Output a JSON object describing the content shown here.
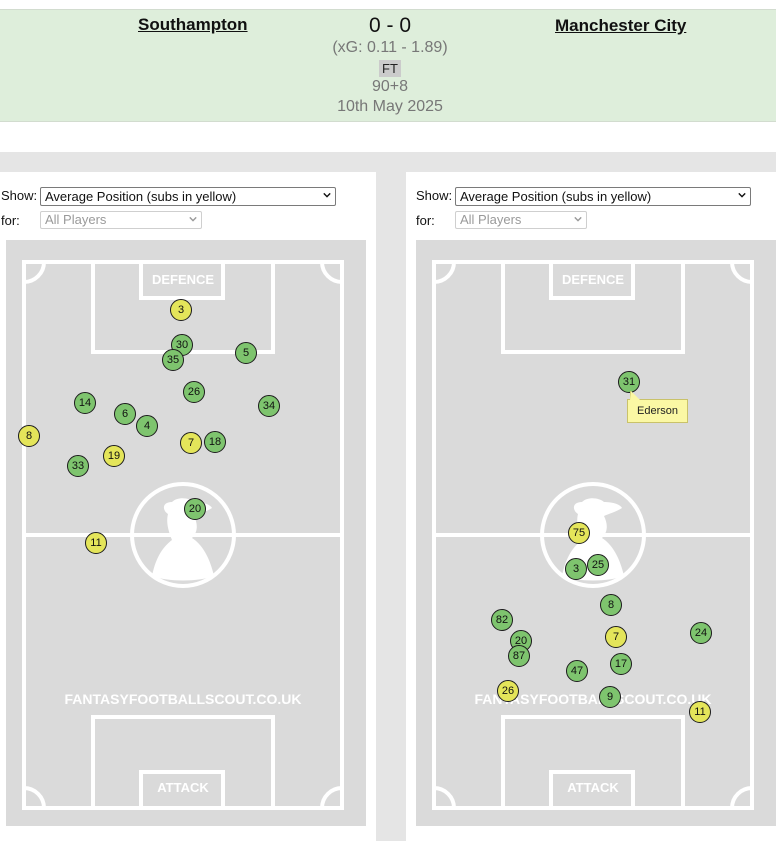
{
  "match": {
    "home_team": "Southampton",
    "away_team": "Manchester City",
    "score": "0 - 0",
    "xg": "(xG:  0.11 - 1.89)",
    "status": "FT",
    "minutes": "90+8",
    "date": "10th May 2025"
  },
  "controls": {
    "show_label": "Show:",
    "show_value": "Average Position (subs in yellow)",
    "for_label": "for:",
    "for_value": "All Players"
  },
  "pitch_text": {
    "defence": "DEFENCE",
    "attack": "ATTACK",
    "watermark": "FANTASYFOOTBALLSCOUT.CO.UK"
  },
  "colors": {
    "starter": "#7ec46e",
    "substitute": "#e4e55a",
    "header_bg": "#deeedb",
    "pitch_bg": "#dadada"
  },
  "home_players": [
    {
      "number": "3",
      "sub": true
    },
    {
      "number": "30",
      "sub": false
    },
    {
      "number": "35",
      "sub": false
    },
    {
      "number": "5",
      "sub": false
    },
    {
      "number": "26",
      "sub": false
    },
    {
      "number": "34",
      "sub": false
    },
    {
      "number": "14",
      "sub": false
    },
    {
      "number": "6",
      "sub": false
    },
    {
      "number": "4",
      "sub": false
    },
    {
      "number": "8",
      "sub": true
    },
    {
      "number": "7",
      "sub": true
    },
    {
      "number": "18",
      "sub": false
    },
    {
      "number": "19",
      "sub": true
    },
    {
      "number": "33",
      "sub": false
    },
    {
      "number": "20",
      "sub": false
    },
    {
      "number": "11",
      "sub": true
    }
  ],
  "away_players": [
    {
      "number": "31",
      "sub": false,
      "name": "Ederson"
    },
    {
      "number": "75",
      "sub": true
    },
    {
      "number": "3",
      "sub": false
    },
    {
      "number": "25",
      "sub": false
    },
    {
      "number": "8",
      "sub": false
    },
    {
      "number": "82",
      "sub": false
    },
    {
      "number": "20",
      "sub": false
    },
    {
      "number": "7",
      "sub": true
    },
    {
      "number": "24",
      "sub": false
    },
    {
      "number": "87",
      "sub": false
    },
    {
      "number": "17",
      "sub": false
    },
    {
      "number": "47",
      "sub": false
    },
    {
      "number": "26",
      "sub": true
    },
    {
      "number": "9",
      "sub": false
    },
    {
      "number": "11",
      "sub": true
    }
  ],
  "tooltip": {
    "text": "Ederson"
  }
}
